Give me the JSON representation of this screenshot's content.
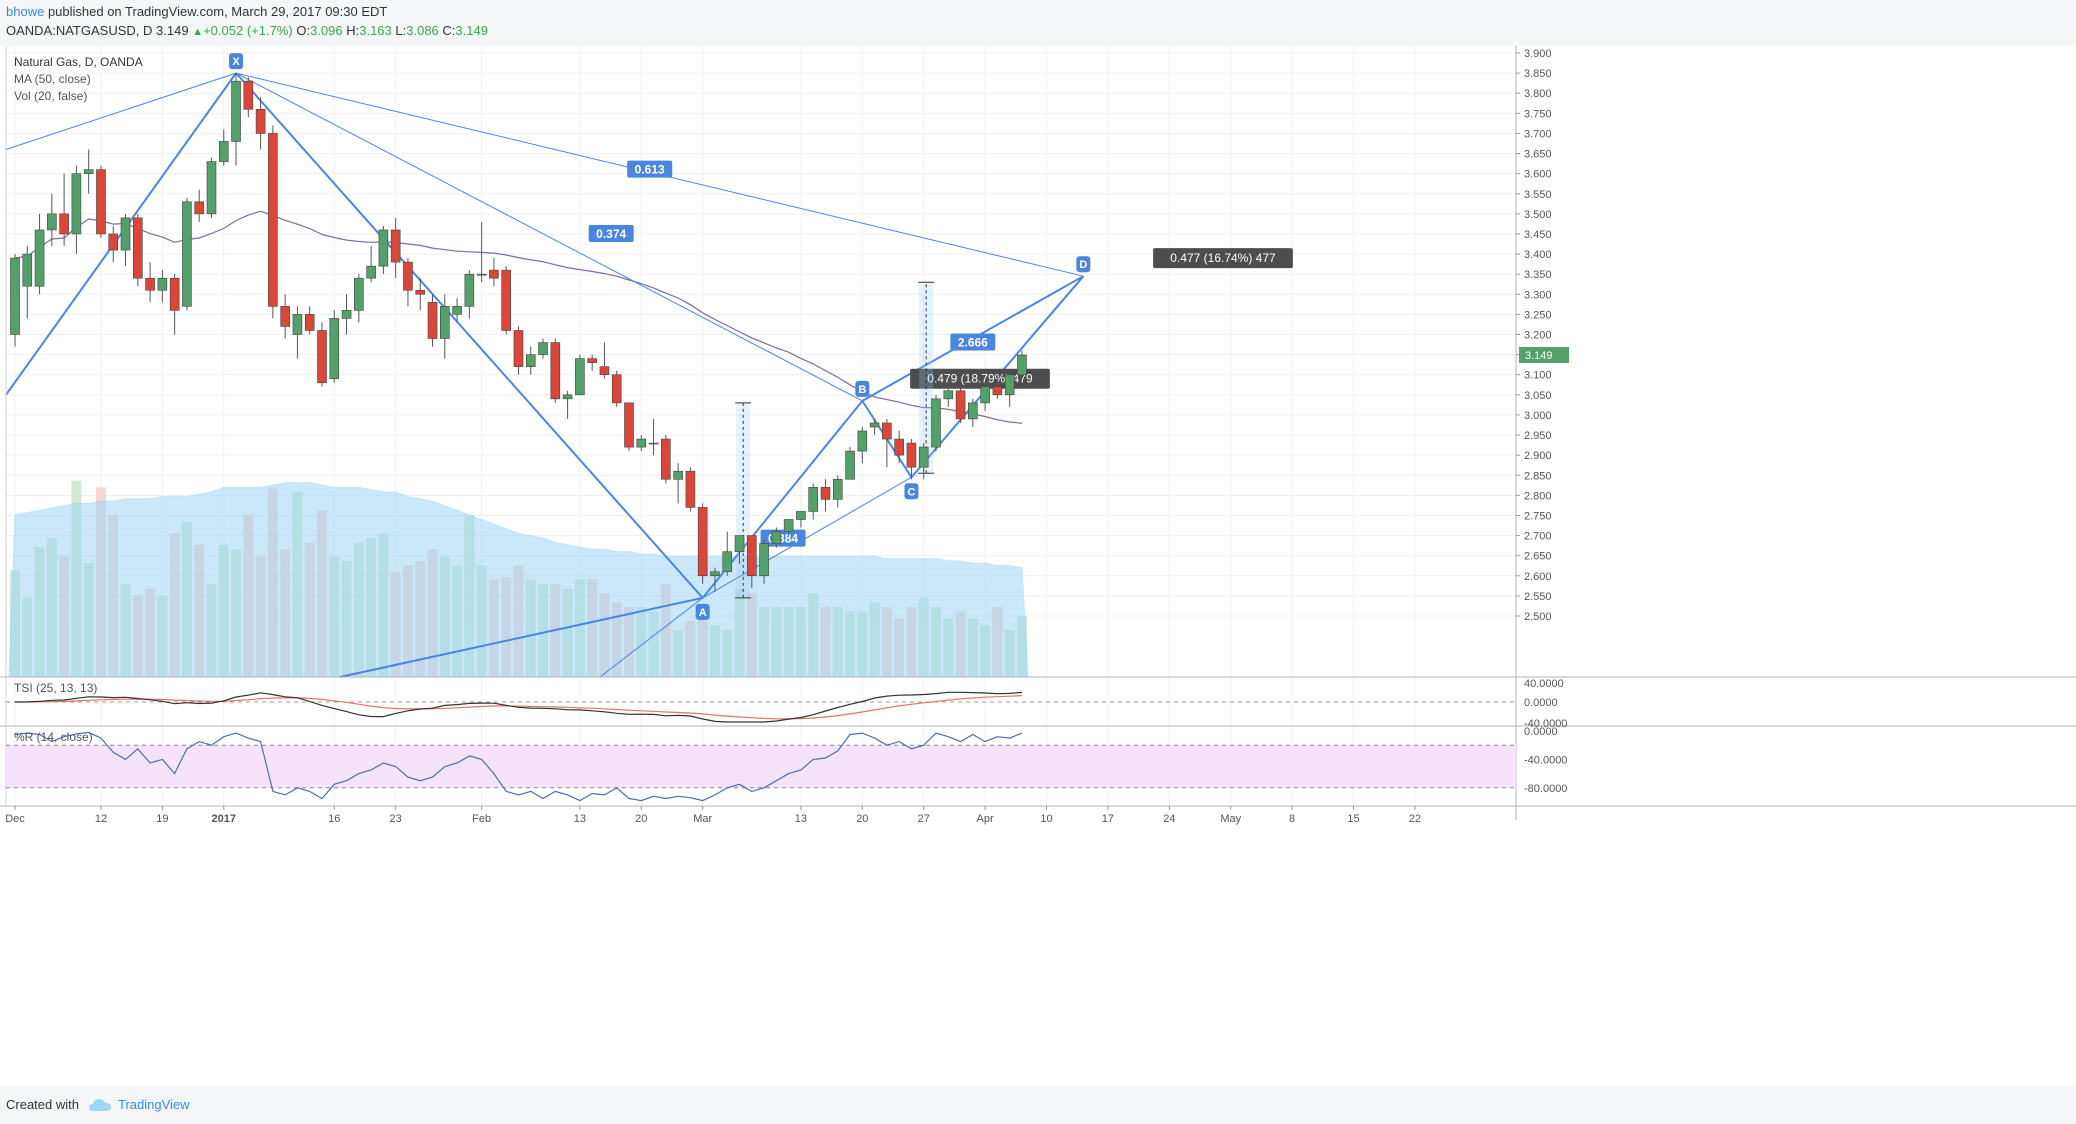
{
  "header": {
    "user": "bhowe",
    "published": "published on TradingView.com, March 29, 2017 09:30 EDT",
    "symbol": "OANDA:NATGASUSD, D",
    "price": "3.149",
    "change": "+0.052 (+1.7%)",
    "o_label": "O:",
    "o": "3.096",
    "h_label": "H:",
    "h": "3.163",
    "l_label": "L:",
    "l": "3.086",
    "c_label": "C:",
    "c": "3.149"
  },
  "legend": {
    "title": "Natural Gas, D, OANDA",
    "ma": "MA (50, close)",
    "vol": "Vol (20, false)"
  },
  "footer": {
    "created": "Created with",
    "brand": "TradingView"
  },
  "colors": {
    "up": "#53a06a",
    "down": "#d8473a",
    "pattern": "#4a86e0",
    "ma": "#7f6aa8",
    "volume_ma": "#9fd6f5",
    "tsi": "#333333",
    "tsi_signal": "#e5736a",
    "willr_fill": "#f4e3fb",
    "willr_line": "#4a6fb4"
  },
  "chart_data": {
    "type": "candlestick",
    "title": "Natural Gas, D, OANDA",
    "ylim": [
      2.48,
      3.92
    ],
    "y_ticks": [
      "3.900",
      "3.850",
      "3.800",
      "3.750",
      "3.700",
      "3.650",
      "3.600",
      "3.550",
      "3.500",
      "3.450",
      "3.400",
      "3.350",
      "3.300",
      "3.250",
      "3.200",
      "3.150",
      "3.100",
      "3.050",
      "3.000",
      "2.950",
      "2.900",
      "2.850",
      "2.800",
      "2.750",
      "2.700",
      "2.650",
      "2.600",
      "2.550",
      "2.500"
    ],
    "x_ticks": [
      {
        "label": "Dec",
        "i": 0
      },
      {
        "label": "12",
        "i": 7
      },
      {
        "label": "19",
        "i": 12
      },
      {
        "label": "2017",
        "i": 17
      },
      {
        "label": "16",
        "i": 26
      },
      {
        "label": "23",
        "i": 31
      },
      {
        "label": "Feb",
        "i": 38
      },
      {
        "label": "13",
        "i": 46
      },
      {
        "label": "20",
        "i": 51
      },
      {
        "label": "Mar",
        "i": 56
      },
      {
        "label": "13",
        "i": 64
      },
      {
        "label": "20",
        "i": 69
      },
      {
        "label": "27",
        "i": 74
      },
      {
        "label": "Apr",
        "i": 79
      },
      {
        "label": "10",
        "i": 84
      },
      {
        "label": "17",
        "i": 89
      },
      {
        "label": "24",
        "i": 94
      },
      {
        "label": "May",
        "i": 99
      },
      {
        "label": "8",
        "i": 104
      },
      {
        "label": "15",
        "i": 109
      },
      {
        "label": "22",
        "i": 114
      }
    ],
    "ohlc": [
      [
        3.2,
        3.4,
        3.17,
        3.39
      ],
      [
        3.32,
        3.42,
        3.24,
        3.4
      ],
      [
        3.32,
        3.5,
        3.3,
        3.46
      ],
      [
        3.46,
        3.55,
        3.42,
        3.5
      ],
      [
        3.5,
        3.6,
        3.42,
        3.45
      ],
      [
        3.45,
        3.62,
        3.4,
        3.6
      ],
      [
        3.6,
        3.66,
        3.55,
        3.61
      ],
      [
        3.61,
        3.62,
        3.44,
        3.45
      ],
      [
        3.45,
        3.47,
        3.38,
        3.41
      ],
      [
        3.41,
        3.5,
        3.37,
        3.49
      ],
      [
        3.49,
        3.5,
        3.32,
        3.34
      ],
      [
        3.34,
        3.38,
        3.28,
        3.31
      ],
      [
        3.31,
        3.36,
        3.28,
        3.34
      ],
      [
        3.34,
        3.35,
        3.2,
        3.26
      ],
      [
        3.27,
        3.54,
        3.26,
        3.53
      ],
      [
        3.53,
        3.56,
        3.48,
        3.5
      ],
      [
        3.5,
        3.64,
        3.49,
        3.63
      ],
      [
        3.63,
        3.71,
        3.62,
        3.68
      ],
      [
        3.68,
        3.85,
        3.62,
        3.83
      ],
      [
        3.83,
        3.84,
        3.74,
        3.76
      ],
      [
        3.76,
        3.79,
        3.66,
        3.7
      ],
      [
        3.7,
        3.72,
        3.24,
        3.27
      ],
      [
        3.27,
        3.3,
        3.19,
        3.22
      ],
      [
        3.2,
        3.27,
        3.14,
        3.25
      ],
      [
        3.25,
        3.27,
        3.2,
        3.21
      ],
      [
        3.21,
        3.23,
        3.07,
        3.08
      ],
      [
        3.09,
        3.26,
        3.08,
        3.24
      ],
      [
        3.24,
        3.3,
        3.2,
        3.26
      ],
      [
        3.26,
        3.35,
        3.23,
        3.34
      ],
      [
        3.34,
        3.42,
        3.33,
        3.37
      ],
      [
        3.37,
        3.47,
        3.35,
        3.46
      ],
      [
        3.46,
        3.49,
        3.34,
        3.38
      ],
      [
        3.38,
        3.39,
        3.27,
        3.31
      ],
      [
        3.31,
        3.34,
        3.26,
        3.3
      ],
      [
        3.28,
        3.3,
        3.17,
        3.19
      ],
      [
        3.19,
        3.3,
        3.14,
        3.27
      ],
      [
        3.25,
        3.29,
        3.23,
        3.27
      ],
      [
        3.27,
        3.36,
        3.24,
        3.35
      ],
      [
        3.35,
        3.48,
        3.33,
        3.35
      ],
      [
        3.36,
        3.39,
        3.32,
        3.34
      ],
      [
        3.36,
        3.37,
        3.2,
        3.21
      ],
      [
        3.21,
        3.22,
        3.1,
        3.12
      ],
      [
        3.12,
        3.17,
        3.1,
        3.15
      ],
      [
        3.15,
        3.19,
        3.14,
        3.18
      ],
      [
        3.18,
        3.19,
        3.03,
        3.04
      ],
      [
        3.04,
        3.06,
        2.99,
        3.05
      ],
      [
        3.05,
        3.15,
        3.05,
        3.14
      ],
      [
        3.14,
        3.15,
        3.11,
        3.13
      ],
      [
        3.12,
        3.18,
        3.09,
        3.1
      ],
      [
        3.1,
        3.11,
        3.02,
        3.03
      ],
      [
        3.03,
        3.03,
        2.91,
        2.92
      ],
      [
        2.92,
        2.95,
        2.91,
        2.94
      ],
      [
        2.93,
        2.99,
        2.9,
        2.93
      ],
      [
        2.94,
        2.95,
        2.83,
        2.84
      ],
      [
        2.84,
        2.88,
        2.78,
        2.86
      ],
      [
        2.86,
        2.87,
        2.76,
        2.77
      ],
      [
        2.77,
        2.78,
        2.58,
        2.6
      ],
      [
        2.6,
        2.62,
        2.56,
        2.61
      ],
      [
        2.61,
        2.71,
        2.6,
        2.66
      ],
      [
        2.66,
        2.7,
        2.63,
        2.7
      ],
      [
        2.7,
        2.7,
        2.57,
        2.6
      ],
      [
        2.6,
        2.69,
        2.58,
        2.68
      ],
      [
        2.68,
        2.72,
        2.67,
        2.71
      ],
      [
        2.71,
        2.74,
        2.7,
        2.74
      ],
      [
        2.74,
        2.76,
        2.72,
        2.76
      ],
      [
        2.76,
        2.83,
        2.74,
        2.82
      ],
      [
        2.82,
        2.84,
        2.76,
        2.79
      ],
      [
        2.79,
        2.85,
        2.77,
        2.84
      ],
      [
        2.84,
        2.92,
        2.84,
        2.91
      ],
      [
        2.91,
        2.97,
        2.88,
        2.96
      ],
      [
        2.97,
        2.99,
        2.95,
        2.98
      ],
      [
        2.98,
        2.99,
        2.87,
        2.94
      ],
      [
        2.94,
        2.96,
        2.88,
        2.9
      ],
      [
        2.93,
        2.94,
        2.84,
        2.87
      ],
      [
        2.87,
        2.93,
        2.84,
        2.92
      ],
      [
        2.92,
        3.05,
        2.91,
        3.04
      ],
      [
        3.04,
        3.08,
        3.02,
        3.06
      ],
      [
        3.06,
        3.07,
        2.98,
        2.99
      ],
      [
        2.99,
        3.04,
        2.97,
        3.03
      ],
      [
        3.03,
        3.08,
        3.01,
        3.07
      ],
      [
        3.07,
        3.09,
        3.04,
        3.05
      ],
      [
        3.05,
        3.11,
        3.02,
        3.1
      ],
      [
        3.1,
        3.16,
        3.09,
        3.149
      ]
    ],
    "volume": [
      46,
      34,
      56,
      60,
      52,
      85,
      49,
      82,
      70,
      40,
      35,
      38,
      35,
      62,
      67,
      57,
      40,
      57,
      55,
      70,
      52,
      82,
      55,
      80,
      58,
      72,
      52,
      50,
      58,
      60,
      62,
      45,
      48,
      50,
      55,
      52,
      48,
      70,
      48,
      42,
      43,
      48,
      42,
      40,
      40,
      38,
      42,
      42,
      36,
      32,
      30,
      30,
      28,
      40,
      20,
      24,
      26,
      22,
      20,
      38,
      36,
      30,
      30,
      30,
      30,
      36,
      30,
      30,
      28,
      28,
      32,
      30,
      25,
      30,
      34,
      30,
      25,
      28,
      25,
      22,
      30,
      20,
      26
    ],
    "volume_ma": [
      70,
      71,
      72,
      73,
      74,
      75,
      75,
      76,
      76,
      77,
      77,
      77,
      78,
      78,
      78,
      79,
      80,
      82,
      82,
      82,
      82,
      83,
      84,
      84,
      84,
      83,
      82,
      82,
      82,
      81,
      80,
      80,
      78,
      77,
      76,
      74,
      72,
      70,
      68,
      66,
      64,
      62,
      61,
      60,
      58,
      57,
      56,
      55,
      55,
      54,
      54,
      53,
      53,
      52,
      52,
      52,
      52,
      52,
      52,
      52,
      52,
      52,
      52,
      52,
      52,
      52,
      52,
      52,
      52,
      52,
      52,
      51,
      51,
      51,
      51,
      51,
      50,
      50,
      49,
      49,
      48,
      48,
      47
    ],
    "pattern": {
      "points": [
        {
          "label": "X",
          "i": 18,
          "price": 3.85
        },
        {
          "label": "A",
          "i": 56,
          "price": 2.545
        },
        {
          "label": "B",
          "i": 69,
          "price": 3.035
        },
        {
          "label": "C",
          "i": 73,
          "price": 2.845
        },
        {
          "label": "D",
          "i": 87,
          "price": 3.345
        }
      ],
      "ratios": [
        "0.613",
        "0.374",
        "2.666",
        "0.384"
      ],
      "measures": [
        "0.479 (18.79%) 479",
        "0.477 (16.74%) 477"
      ]
    },
    "tsi": {
      "label": "TSI (25, 13, 13)",
      "ticks": [
        "40.0000",
        "0.0000",
        "-40.0000"
      ],
      "series": [
        {
          "name": "TSI"
        },
        {
          "name": "Signal"
        }
      ]
    },
    "willr": {
      "label": "%R (14, close)",
      "ticks": [
        "0.0000",
        "-40.0000",
        "-80.0000"
      ],
      "bands": [
        -20,
        -80
      ],
      "values": [
        -5,
        -3,
        -5,
        -15,
        -8,
        -4,
        -2,
        -10,
        -30,
        -40,
        -25,
        -45,
        -40,
        -60,
        -25,
        -15,
        -20,
        -8,
        -3,
        -10,
        -15,
        -85,
        -90,
        -80,
        -85,
        -95,
        -75,
        -70,
        -60,
        -55,
        -45,
        -50,
        -65,
        -70,
        -65,
        -50,
        -45,
        -35,
        -40,
        -60,
        -85,
        -90,
        -85,
        -95,
        -85,
        -90,
        -98,
        -88,
        -90,
        -80,
        -95,
        -98,
        -92,
        -95,
        -92,
        -94,
        -98,
        -90,
        -80,
        -75,
        -85,
        -80,
        -70,
        -60,
        -55,
        -40,
        -38,
        -28,
        -5,
        -3,
        -10,
        -20,
        -15,
        -25,
        -20,
        -3,
        -8,
        -15,
        -5,
        -15,
        -8,
        -10,
        -3
      ]
    }
  }
}
